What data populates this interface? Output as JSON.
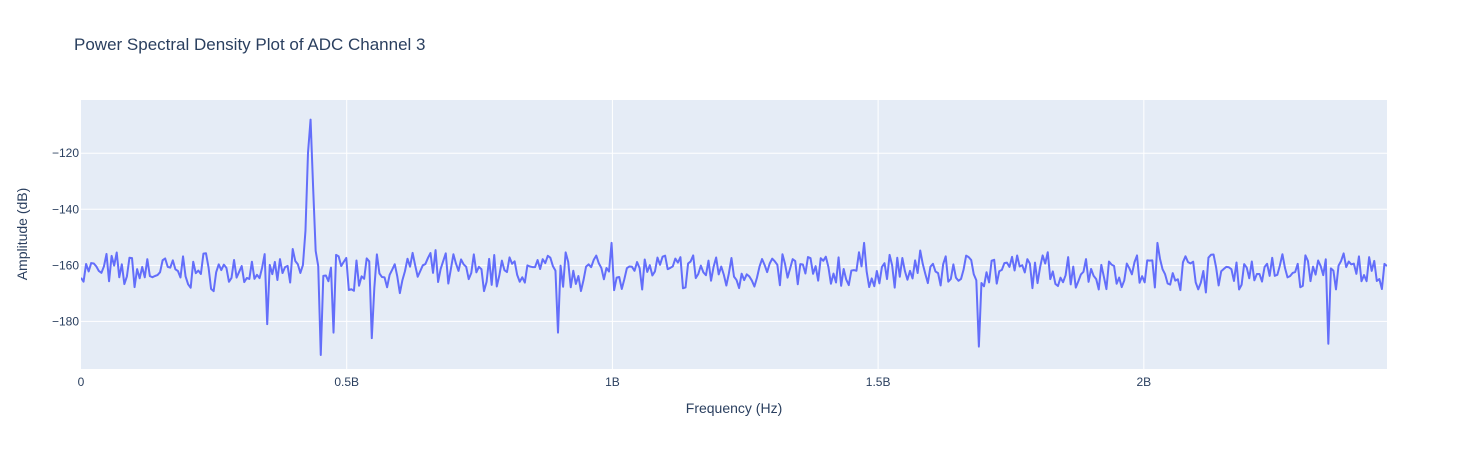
{
  "chart_data": {
    "type": "line",
    "title": "Power Spectral Density Plot of ADC Channel 3",
    "xlabel": "Frequency (Hz)",
    "ylabel": "Amplitude (dB)",
    "xlim": [
      0,
      2457600000
    ],
    "ylim": [
      -197,
      -101
    ],
    "x_ticks": [
      {
        "value": 0,
        "label": "0"
      },
      {
        "value": 500000000,
        "label": "0.5B"
      },
      {
        "value": 1000000000,
        "label": "1B"
      },
      {
        "value": 1500000000,
        "label": "1.5B"
      },
      {
        "value": 2000000000,
        "label": "2B"
      }
    ],
    "y_ticks": [
      {
        "value": -180,
        "label": "−180"
      },
      {
        "value": -160,
        "label": "−160"
      },
      {
        "value": -140,
        "label": "−140"
      },
      {
        "value": -120,
        "label": "−120"
      }
    ],
    "grid": true,
    "legend": "none",
    "colors": {
      "line": "#636efa",
      "plot_bg": "#e5ecf6",
      "grid": "#ffffff",
      "text": "#2a3f5f"
    },
    "series": [
      {
        "x_start": 0,
        "x_step": 4800000,
        "noise_floor_db": -162,
        "peak_frequency": 431000000,
        "peak_db": -107,
        "notable_points": [
          {
            "x": 350000000,
            "y": -181
          },
          {
            "x": 450000000,
            "y": -192
          },
          {
            "x": 476000000,
            "y": -184
          },
          {
            "x": 545000000,
            "y": -186
          },
          {
            "x": 899000000,
            "y": -184
          },
          {
            "x": 1689000000,
            "y": -189
          },
          {
            "x": 2349000000,
            "y": -188
          },
          {
            "x": 1000000000,
            "y": -152
          },
          {
            "x": 1475000000,
            "y": -152
          },
          {
            "x": 2024000000,
            "y": -152
          }
        ],
        "values": []
      }
    ]
  }
}
